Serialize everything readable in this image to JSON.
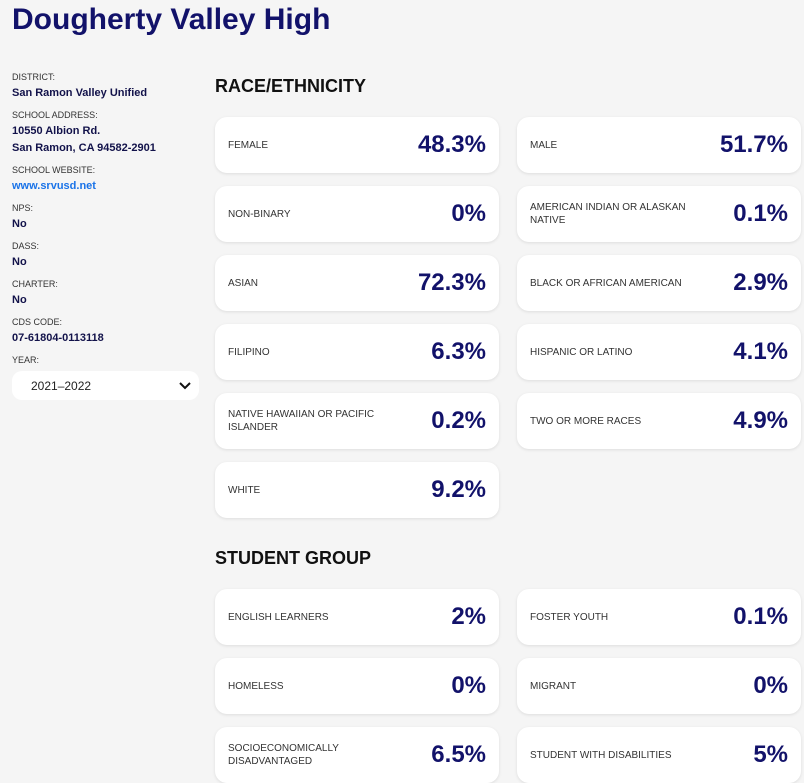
{
  "title": "Dougherty Valley High",
  "sidebar": {
    "district_label": "DISTRICT:",
    "district": "San Ramon Valley Unified",
    "address_label": "SCHOOL ADDRESS:",
    "address1": "10550 Albion Rd.",
    "address2": "San Ramon, CA 94582-2901",
    "website_label": "SCHOOL WEBSITE:",
    "website": "www.srvusd.net",
    "nps_label": "NPS:",
    "nps": "No",
    "dass_label": "DASS:",
    "dass": "No",
    "charter_label": "CHARTER:",
    "charter": "No",
    "cds_label": "CDS CODE:",
    "cds": "07-61804-0113118",
    "year_label": "YEAR:",
    "year": "2021–2022"
  },
  "race": {
    "heading": "RACE/ETHNICITY",
    "items": [
      {
        "label": "FEMALE",
        "value": "48.3%"
      },
      {
        "label": "MALE",
        "value": "51.7%"
      },
      {
        "label": "NON-BINARY",
        "value": "0%"
      },
      {
        "label": "AMERICAN INDIAN OR ALASKAN NATIVE",
        "value": "0.1%"
      },
      {
        "label": "ASIAN",
        "value": "72.3%"
      },
      {
        "label": "BLACK OR AFRICAN AMERICAN",
        "value": "2.9%"
      },
      {
        "label": "FILIPINO",
        "value": "6.3%"
      },
      {
        "label": "HISPANIC OR LATINO",
        "value": "4.1%"
      },
      {
        "label": "NATIVE HAWAIIAN OR PACIFIC ISLANDER",
        "value": "0.2%"
      },
      {
        "label": "TWO OR MORE RACES",
        "value": "4.9%"
      },
      {
        "label": "WHITE",
        "value": "9.2%"
      }
    ]
  },
  "group": {
    "heading": "STUDENT GROUP",
    "items": [
      {
        "label": "ENGLISH LEARNERS",
        "value": "2%"
      },
      {
        "label": "FOSTER YOUTH",
        "value": "0.1%"
      },
      {
        "label": "HOMELESS",
        "value": "0%"
      },
      {
        "label": "MIGRANT",
        "value": "0%"
      },
      {
        "label": "SOCIOECONOMICALLY DISADVANTAGED",
        "value": "6.5%"
      },
      {
        "label": "STUDENT WITH DISABILITIES",
        "value": "5%"
      }
    ]
  }
}
